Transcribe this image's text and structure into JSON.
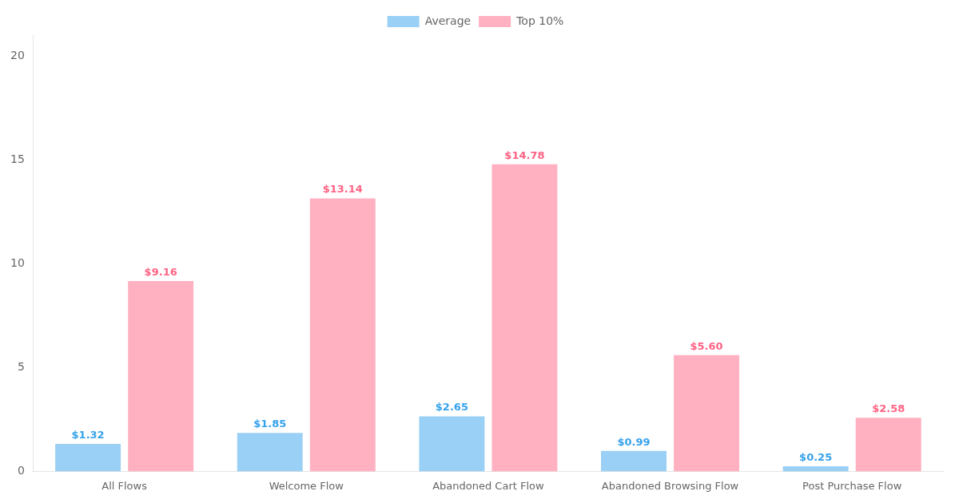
{
  "chart_data": {
    "type": "bar",
    "categories": [
      "All Flows",
      "Welcome Flow",
      "Abandoned Cart Flow",
      "Abandoned Browsing Flow",
      "Post Purchase Flow"
    ],
    "series": [
      {
        "name": "Average",
        "values": [
          1.32,
          1.85,
          2.65,
          0.99,
          0.25
        ],
        "value_labels": [
          "$1.32",
          "$1.85",
          "$2.65",
          "$0.99",
          "$0.25"
        ]
      },
      {
        "name": "Top 10%",
        "values": [
          9.16,
          13.14,
          14.78,
          5.6,
          2.58
        ],
        "value_labels": [
          "$9.16",
          "$13.14",
          "$14.78",
          "$5.60",
          "$2.58"
        ]
      }
    ],
    "ylim": [
      0,
      21
    ],
    "yticks": [
      0,
      5,
      10,
      15,
      20
    ],
    "grid": false,
    "legend": "top",
    "data_labels": true
  }
}
